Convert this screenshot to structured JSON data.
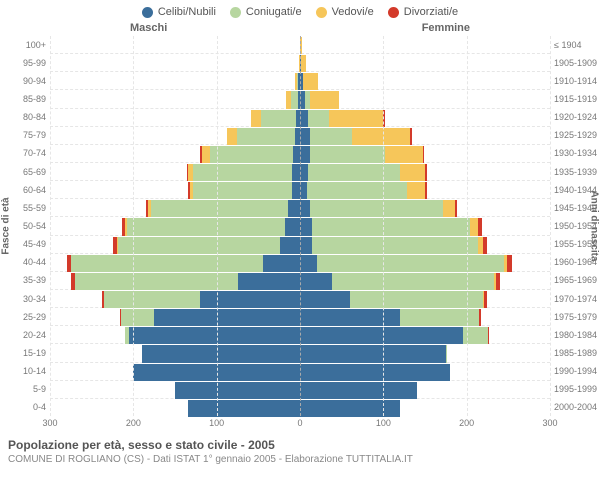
{
  "chart": {
    "type": "population-pyramid",
    "background_color": "#ffffff",
    "grid_color": "#e6e6e6",
    "center_line_color": "#aaaaaa",
    "axis_text_color": "#777777",
    "max_value": 300,
    "x_ticks": [
      300,
      200,
      100,
      0,
      100,
      200,
      300
    ],
    "legend": [
      {
        "label": "Celibi/Nubili",
        "color": "#3b6e9b"
      },
      {
        "label": "Coniugati/e",
        "color": "#b7d6a0"
      },
      {
        "label": "Vedovi/e",
        "color": "#f6c65a"
      },
      {
        "label": "Divorziati/e",
        "color": "#d33a2a"
      }
    ],
    "side_labels": {
      "male": "Maschi",
      "female": "Femmine"
    },
    "y_left_title": "Fasce di età",
    "y_right_title": "Anni di nascita",
    "footer_title": "Popolazione per età, sesso e stato civile - 2005",
    "footer_sub": "COMUNE DI ROGLIANO (CS) - Dati ISTAT 1° gennaio 2005 - Elaborazione TUTTITALIA.IT",
    "rows": [
      {
        "age": "100+",
        "birth": "≤ 1904",
        "male": {
          "c": 0,
          "m": 0,
          "w": 0,
          "d": 0
        },
        "female": {
          "c": 0,
          "m": 0,
          "w": 2,
          "d": 0
        }
      },
      {
        "age": "95-99",
        "birth": "1905-1909",
        "male": {
          "c": 0,
          "m": 0,
          "w": 1,
          "d": 0
        },
        "female": {
          "c": 1,
          "m": 0,
          "w": 6,
          "d": 0
        }
      },
      {
        "age": "90-94",
        "birth": "1910-1914",
        "male": {
          "c": 2,
          "m": 2,
          "w": 2,
          "d": 0
        },
        "female": {
          "c": 3,
          "m": 1,
          "w": 18,
          "d": 0
        }
      },
      {
        "age": "85-89",
        "birth": "1915-1919",
        "male": {
          "c": 3,
          "m": 8,
          "w": 6,
          "d": 0
        },
        "female": {
          "c": 6,
          "m": 6,
          "w": 35,
          "d": 0
        }
      },
      {
        "age": "80-84",
        "birth": "1920-1924",
        "male": {
          "c": 5,
          "m": 42,
          "w": 12,
          "d": 0
        },
        "female": {
          "c": 10,
          "m": 25,
          "w": 65,
          "d": 2
        }
      },
      {
        "age": "75-79",
        "birth": "1925-1929",
        "male": {
          "c": 6,
          "m": 70,
          "w": 12,
          "d": 0
        },
        "female": {
          "c": 12,
          "m": 50,
          "w": 70,
          "d": 2
        }
      },
      {
        "age": "70-74",
        "birth": "1930-1934",
        "male": {
          "c": 8,
          "m": 100,
          "w": 10,
          "d": 2
        },
        "female": {
          "c": 12,
          "m": 90,
          "w": 45,
          "d": 2
        }
      },
      {
        "age": "65-69",
        "birth": "1935-1939",
        "male": {
          "c": 10,
          "m": 118,
          "w": 6,
          "d": 2
        },
        "female": {
          "c": 10,
          "m": 110,
          "w": 30,
          "d": 2
        }
      },
      {
        "age": "60-64",
        "birth": "1940-1944",
        "male": {
          "c": 10,
          "m": 118,
          "w": 4,
          "d": 2
        },
        "female": {
          "c": 8,
          "m": 120,
          "w": 22,
          "d": 2
        }
      },
      {
        "age": "55-59",
        "birth": "1945-1949",
        "male": {
          "c": 14,
          "m": 165,
          "w": 3,
          "d": 3
        },
        "female": {
          "c": 12,
          "m": 160,
          "w": 14,
          "d": 3
        }
      },
      {
        "age": "50-54",
        "birth": "1950-1954",
        "male": {
          "c": 18,
          "m": 190,
          "w": 2,
          "d": 4
        },
        "female": {
          "c": 14,
          "m": 190,
          "w": 10,
          "d": 4
        }
      },
      {
        "age": "45-49",
        "birth": "1955-1959",
        "male": {
          "c": 24,
          "m": 195,
          "w": 1,
          "d": 4
        },
        "female": {
          "c": 14,
          "m": 200,
          "w": 6,
          "d": 4
        }
      },
      {
        "age": "40-44",
        "birth": "1960-1964",
        "male": {
          "c": 45,
          "m": 230,
          "w": 0,
          "d": 5
        },
        "female": {
          "c": 20,
          "m": 225,
          "w": 4,
          "d": 5
        }
      },
      {
        "age": "35-39",
        "birth": "1965-1969",
        "male": {
          "c": 75,
          "m": 195,
          "w": 0,
          "d": 5
        },
        "female": {
          "c": 38,
          "m": 195,
          "w": 2,
          "d": 5
        }
      },
      {
        "age": "30-34",
        "birth": "1970-1974",
        "male": {
          "c": 120,
          "m": 115,
          "w": 0,
          "d": 3
        },
        "female": {
          "c": 60,
          "m": 160,
          "w": 1,
          "d": 4
        }
      },
      {
        "age": "25-29",
        "birth": "1975-1979",
        "male": {
          "c": 175,
          "m": 40,
          "w": 0,
          "d": 1
        },
        "female": {
          "c": 120,
          "m": 95,
          "w": 0,
          "d": 2
        }
      },
      {
        "age": "20-24",
        "birth": "1980-1984",
        "male": {
          "c": 205,
          "m": 5,
          "w": 0,
          "d": 0
        },
        "female": {
          "c": 195,
          "m": 30,
          "w": 0,
          "d": 1
        }
      },
      {
        "age": "15-19",
        "birth": "1985-1989",
        "male": {
          "c": 190,
          "m": 0,
          "w": 0,
          "d": 0
        },
        "female": {
          "c": 175,
          "m": 2,
          "w": 0,
          "d": 0
        }
      },
      {
        "age": "10-14",
        "birth": "1990-1994",
        "male": {
          "c": 200,
          "m": 0,
          "w": 0,
          "d": 0
        },
        "female": {
          "c": 180,
          "m": 0,
          "w": 0,
          "d": 0
        }
      },
      {
        "age": "5-9",
        "birth": "1995-1999",
        "male": {
          "c": 150,
          "m": 0,
          "w": 0,
          "d": 0
        },
        "female": {
          "c": 140,
          "m": 0,
          "w": 0,
          "d": 0
        }
      },
      {
        "age": "0-4",
        "birth": "2000-2004",
        "male": {
          "c": 135,
          "m": 0,
          "w": 0,
          "d": 0
        },
        "female": {
          "c": 120,
          "m": 0,
          "w": 0,
          "d": 0
        }
      }
    ]
  }
}
